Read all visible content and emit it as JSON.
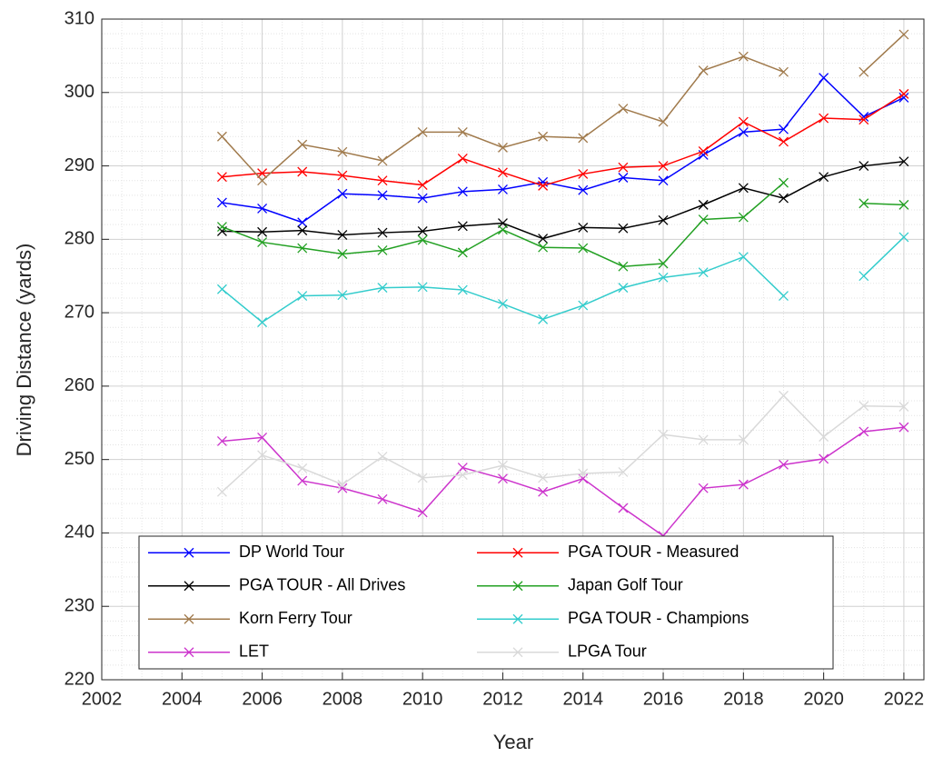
{
  "chart_data": {
    "type": "line",
    "xlabel": "Year",
    "ylabel": "Driving Distance (yards)",
    "x": [
      2005,
      2006,
      2007,
      2008,
      2009,
      2010,
      2011,
      2012,
      2013,
      2014,
      2015,
      2016,
      2017,
      2018,
      2019,
      2020,
      2021,
      2022
    ],
    "xlim": [
      2002,
      2022.5
    ],
    "xticks": [
      2002,
      2004,
      2006,
      2008,
      2010,
      2012,
      2014,
      2016,
      2018,
      2020,
      2022
    ],
    "ylim": [
      220,
      310
    ],
    "yticks": [
      220,
      230,
      240,
      250,
      260,
      270,
      280,
      290,
      300,
      310
    ],
    "grid": true,
    "minor_grid": true,
    "legend": "south",
    "marker": "x",
    "series": [
      {
        "name": "DP World Tour",
        "color": "#0000ff",
        "values": [
          285,
          284.2,
          282.3,
          286.2,
          286,
          285.6,
          286.5,
          286.8,
          287.8,
          286.7,
          288.4,
          288,
          291.5,
          294.6,
          295,
          302,
          296.7,
          299.3
        ]
      },
      {
        "name": "PGA TOUR - Measured",
        "color": "#ff0000",
        "values": [
          288.5,
          289,
          289.2,
          288.7,
          288,
          287.4,
          291,
          289.1,
          287.3,
          288.9,
          289.8,
          290,
          292,
          296,
          293.3,
          296.5,
          296.3,
          299.8
        ]
      },
      {
        "name": "PGA TOUR - All Drives",
        "color": "#000000",
        "values": [
          281.1,
          281,
          281.2,
          280.6,
          280.9,
          281.1,
          281.8,
          282.2,
          280.1,
          281.6,
          281.5,
          282.6,
          284.7,
          287,
          285.6,
          288.5,
          290,
          290.6
        ]
      },
      {
        "name": "Japan Golf Tour",
        "color": "#22a022",
        "values": [
          281.7,
          279.6,
          278.8,
          278,
          278.5,
          279.9,
          278.2,
          281.3,
          278.9,
          278.8,
          276.3,
          276.7,
          282.7,
          283,
          287.7,
          null,
          284.9,
          284.7
        ]
      },
      {
        "name": "Korn Ferry Tour",
        "color": "#a07a4c",
        "values": [
          294,
          288,
          292.9,
          291.9,
          290.7,
          294.6,
          294.6,
          292.5,
          294,
          293.8,
          297.8,
          296,
          303,
          304.9,
          302.8,
          null,
          302.8,
          307.9
        ]
      },
      {
        "name": "PGA TOUR - Champions",
        "color": "#33cccc",
        "values": [
          273.2,
          268.7,
          272.3,
          272.4,
          273.4,
          273.5,
          273.1,
          271.2,
          269.1,
          271,
          273.4,
          274.8,
          275.5,
          277.6,
          272.3,
          null,
          275,
          280.3
        ]
      },
      {
        "name": "LET",
        "color": "#cc33cc",
        "values": [
          252.5,
          253,
          247.1,
          246.1,
          244.6,
          242.8,
          248.9,
          247.4,
          245.6,
          247.4,
          243.4,
          239.6,
          246.1,
          246.6,
          249.3,
          250.1,
          253.8,
          254.4
        ]
      },
      {
        "name": "LPGA Tour",
        "color": "#d9d9d9",
        "values": [
          245.6,
          250.6,
          248.8,
          246.6,
          250.4,
          247.5,
          247.9,
          249.2,
          247.5,
          248.1,
          248.3,
          253.4,
          252.7,
          252.7,
          258.7,
          253.1,
          257.3,
          257.2
        ]
      }
    ]
  }
}
